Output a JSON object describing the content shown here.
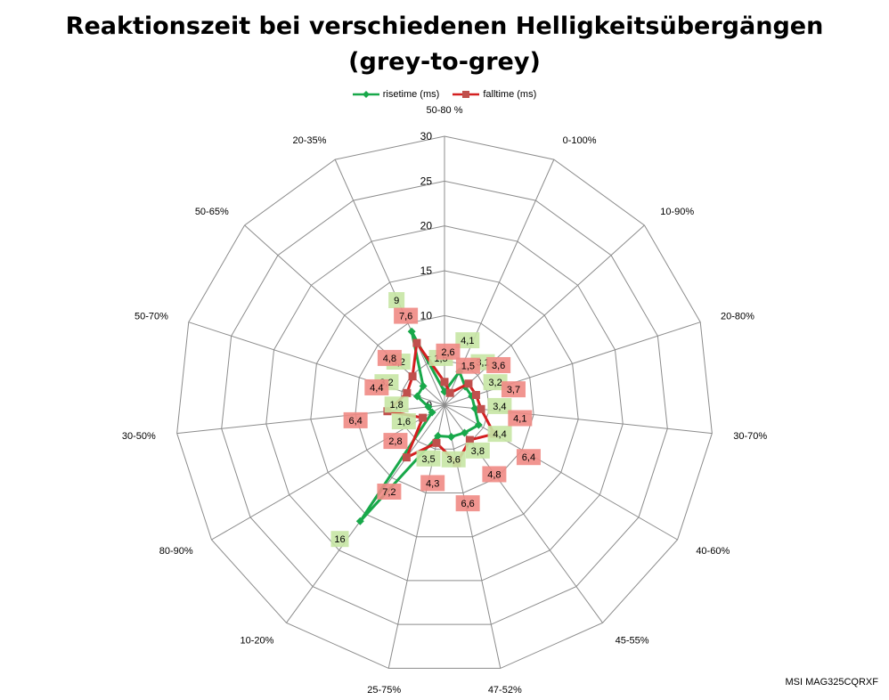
{
  "chart_data": {
    "type": "radar",
    "title": [
      "Reaktionszeit bei verschiedenen Helligkeitsübergängen",
      "(grey-to-grey)"
    ],
    "categories": [
      "50-80 %",
      "0-100%",
      "10-90%",
      "20-80%",
      "30-70%",
      "40-60%",
      "45-55%",
      "47-52%",
      "25-75%",
      "10-20%",
      "80-90%",
      "30-50%",
      "50-70%",
      "50-65%",
      "20-35%"
    ],
    "rlim": [
      0,
      30
    ],
    "ticks": [
      0,
      5,
      10,
      15,
      20,
      25,
      30
    ],
    "grid": true,
    "legend_position": "top",
    "series": [
      {
        "name": "risetime (ms)",
        "color": "#18a84a",
        "label_bg": "#c6e6a4",
        "values": [
          1.5,
          4.1,
          3.1,
          3.2,
          3.4,
          4.4,
          3.8,
          3.6,
          3.5,
          16,
          1.6,
          1.8,
          3.2,
          3.2,
          9
        ],
        "labels": [
          "1,5",
          "4,1",
          "3,1",
          "3,2",
          "3,4",
          "4,4",
          "3,8",
          "3,6",
          "3,5",
          "16",
          "1,6",
          "1,8",
          "3,2",
          "3,2",
          "9"
        ]
      },
      {
        "name": "falltime (ms)",
        "color": "#d42020",
        "label_bg": "#f08a84",
        "values": [
          2.6,
          1.5,
          3.6,
          3.7,
          4.1,
          6.4,
          4.8,
          6.6,
          4.3,
          7.2,
          2.8,
          6.4,
          4.4,
          4.8,
          7.6
        ],
        "labels": [
          "2,6",
          "1,5",
          "3,6",
          "3,7",
          "4,1",
          "6,4",
          "4,8",
          "6,6",
          "4,3",
          "7,2",
          "2,8",
          "6,4",
          "4,4",
          "4,8",
          "7,6"
        ]
      }
    ],
    "footer": "MSI MAG325CQRXF"
  }
}
